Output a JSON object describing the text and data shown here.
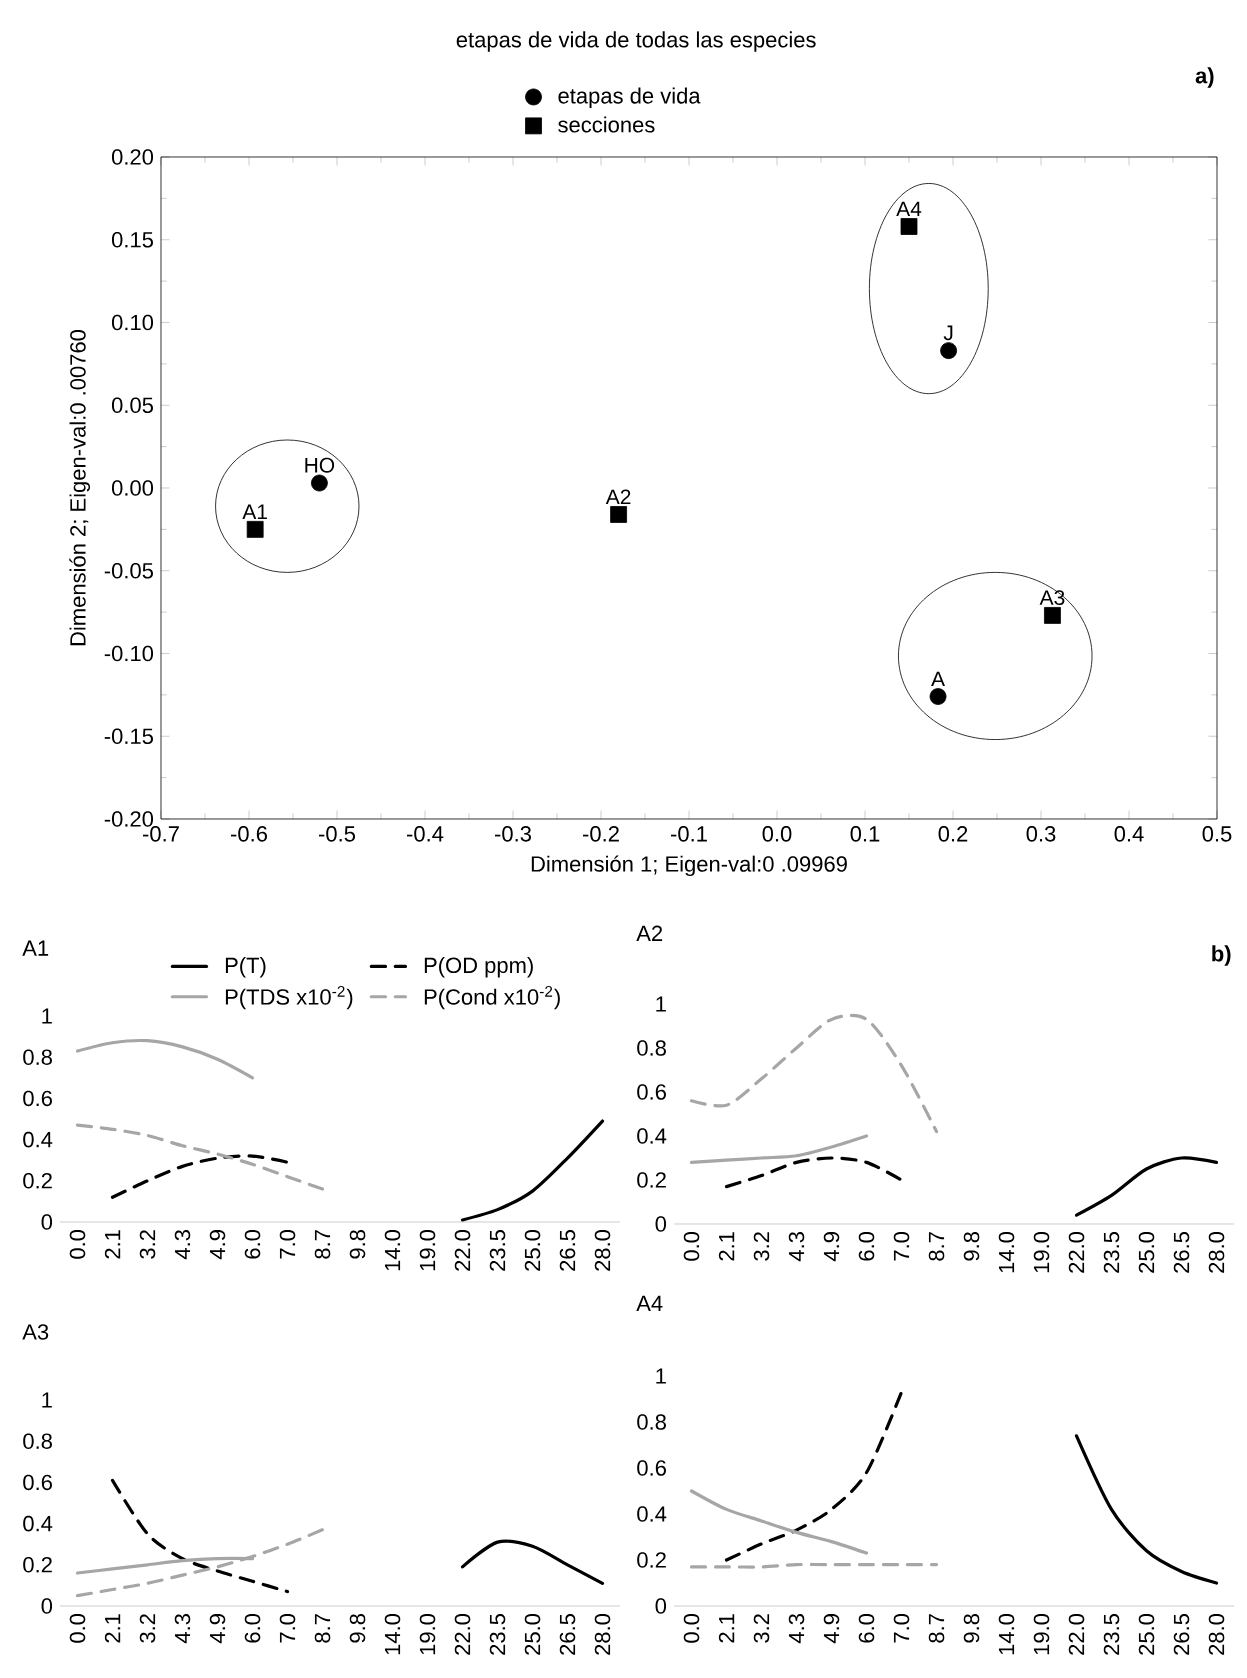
{
  "chart_data": [
    {
      "type": "scatter",
      "title": "etapas de vida de todas las especies",
      "xlabel": "Dimensión 1; Eigen-val:0 .09969",
      "ylabel": "Dimensión 2; Eigen-val:0 .00760",
      "xlim": [
        -0.7,
        0.5
      ],
      "xticks": [
        -0.7,
        -0.6,
        -0.5,
        -0.4,
        -0.3,
        -0.2,
        -0.1,
        {
          "value": 0,
          "label": "0.0"
        },
        0.1,
        0.2,
        0.3,
        0.4,
        0.5
      ],
      "ylim": [
        -0.2,
        0.2
      ],
      "yticks": [
        {
          "value": -0.2,
          "label": "-0.20"
        },
        {
          "value": -0.15,
          "label": "-0.15"
        },
        {
          "value": -0.1,
          "label": "-0.10"
        },
        {
          "value": -0.05,
          "label": "-0.05"
        },
        {
          "value": 0,
          "label": "0.00"
        },
        {
          "value": 0.05,
          "label": "0.05"
        },
        {
          "value": 0.1,
          "label": "0.10"
        },
        {
          "value": 0.15,
          "label": "0.15"
        },
        {
          "value": 0.2,
          "label": "0.20"
        }
      ],
      "legend": "top",
      "series": [
        {
          "name": "etapas de vida",
          "color": "#000000",
          "marker": "circle",
          "x": [
            -0.52,
            0.195,
            0.183
          ],
          "values": [
            0.003,
            0.083,
            -0.126
          ]
        },
        {
          "name": "secciones",
          "color": "#000000",
          "marker": "square",
          "x": [
            -0.593,
            -0.18,
            0.313,
            0.15
          ],
          "values": [
            -0.025,
            -0.016,
            -0.077,
            0.158
          ]
        }
      ],
      "annotations": [
        "a)",
        {
          "text": "HO",
          "x": -0.52,
          "y": 0.003
        },
        {
          "text": "J",
          "x": 0.195,
          "y": 0.083
        },
        {
          "text": "A",
          "x": 0.183,
          "y": -0.126
        },
        {
          "text": "A1",
          "x": -0.593,
          "y": -0.025
        },
        {
          "text": "A2",
          "x": -0.18,
          "y": -0.016
        },
        {
          "text": "A3",
          "x": 0.313,
          "y": -0.077
        },
        {
          "text": "A4",
          "x": 0.15,
          "y": 0.158
        }
      ]
    },
    {
      "type": "line",
      "title": "A1",
      "categories": [
        "0.0",
        "2.1",
        "3.2",
        "4.3",
        "4.9",
        "6.0",
        "7.0",
        "8.7",
        "9.8",
        "14.0",
        "19.0",
        "22.0",
        "23.5",
        "25.0",
        "26.5",
        "28.0"
      ],
      "ylim": [
        0,
        1
      ],
      "yticks": [
        0,
        0.2,
        0.4,
        0.6,
        0.8,
        1
      ],
      "legend": "top",
      "series": [
        {
          "name": "P(T)",
          "color": "#000000",
          "line_style": "solid",
          "values": [
            null,
            null,
            null,
            null,
            null,
            null,
            null,
            null,
            null,
            null,
            null,
            0.01,
            0.06,
            0.15,
            0.31,
            0.49
          ]
        },
        {
          "name": "P(OD ppm)",
          "color": "#000000",
          "line_style": "dashed",
          "values": [
            null,
            0.12,
            0.2,
            0.27,
            0.31,
            0.32,
            0.29,
            null,
            null,
            null,
            null,
            null,
            null,
            null,
            null,
            null
          ]
        },
        {
          "name": "P(TDS x10$^{-2}$)",
          "color": "#a6a6a6",
          "line_style": "solid",
          "values": [
            0.83,
            0.87,
            0.88,
            0.85,
            0.79,
            0.7,
            null,
            null,
            null,
            null,
            null,
            null,
            null,
            null,
            null,
            null
          ]
        },
        {
          "name": "P(Cond x10$^{-2}$)",
          "color": "#a6a6a6",
          "line_style": "dashed",
          "values": [
            0.47,
            0.45,
            0.42,
            0.37,
            0.33,
            0.28,
            0.22,
            0.16,
            null,
            null,
            null,
            null,
            null,
            null,
            null,
            null
          ]
        }
      ]
    },
    {
      "type": "line",
      "title": "A2",
      "categories": [
        "0.0",
        "2.1",
        "3.2",
        "4.3",
        "4.9",
        "6.0",
        "7.0",
        "8.7",
        "9.8",
        "14.0",
        "19.0",
        "22.0",
        "23.5",
        "25.0",
        "26.5",
        "28.0"
      ],
      "ylim": [
        0,
        1
      ],
      "yticks": [
        0,
        0.2,
        0.4,
        0.6,
        0.8,
        1
      ],
      "annotations": [
        "b)"
      ],
      "series": [
        {
          "color": "#000000",
          "line_style": "solid",
          "values": [
            null,
            null,
            null,
            null,
            null,
            null,
            null,
            null,
            null,
            null,
            null,
            0.04,
            0.13,
            0.25,
            0.3,
            0.28
          ]
        },
        {
          "color": "#000000",
          "line_style": "dashed",
          "values": [
            null,
            0.17,
            0.22,
            0.28,
            0.3,
            0.28,
            0.2,
            null,
            null,
            null,
            null,
            null,
            null,
            null,
            null,
            null
          ]
        },
        {
          "color": "#a6a6a6",
          "line_style": "solid",
          "values": [
            0.28,
            0.29,
            0.3,
            0.31,
            0.35,
            0.4,
            null,
            null,
            null,
            null,
            null,
            null,
            null,
            null,
            null,
            null
          ]
        },
        {
          "color": "#a6a6a6",
          "line_style": "dashed",
          "values": [
            0.56,
            0.54,
            0.66,
            0.8,
            0.93,
            0.93,
            0.72,
            0.42,
            null,
            null,
            null,
            null,
            null,
            null,
            null,
            null
          ]
        }
      ]
    },
    {
      "type": "line",
      "title": "A3",
      "categories": [
        "0.0",
        "2.1",
        "3.2",
        "4.3",
        "4.9",
        "6.0",
        "7.0",
        "8.7",
        "9.8",
        "14.0",
        "19.0",
        "22.0",
        "23.5",
        "25.0",
        "26.5",
        "28.0"
      ],
      "ylim": [
        0,
        1
      ],
      "yticks": [
        0,
        0.2,
        0.4,
        0.6,
        0.8,
        1
      ],
      "series": [
        {
          "color": "#000000",
          "line_style": "solid",
          "values": [
            null,
            null,
            null,
            null,
            null,
            null,
            null,
            null,
            null,
            null,
            null,
            0.19,
            0.31,
            0.29,
            0.2,
            0.11
          ]
        },
        {
          "color": "#000000",
          "line_style": "dashed",
          "values": [
            null,
            0.61,
            0.35,
            0.23,
            0.17,
            0.12,
            0.07,
            null,
            null,
            null,
            null,
            null,
            null,
            null,
            null,
            null
          ]
        },
        {
          "color": "#a6a6a6",
          "line_style": "solid",
          "values": [
            0.16,
            0.18,
            0.2,
            0.22,
            0.23,
            0.23,
            null,
            null,
            null,
            null,
            null,
            null,
            null,
            null,
            null,
            null
          ]
        },
        {
          "color": "#a6a6a6",
          "line_style": "dashed",
          "values": [
            0.05,
            0.08,
            0.11,
            0.15,
            0.19,
            0.24,
            0.3,
            0.37,
            null,
            null,
            null,
            null,
            null,
            null,
            null,
            null
          ]
        }
      ]
    },
    {
      "type": "line",
      "title": "A4",
      "categories": [
        "0.0",
        "2.1",
        "3.2",
        "4.3",
        "4.9",
        "6.0",
        "7.0",
        "8.7",
        "9.8",
        "14.0",
        "19.0",
        "22.0",
        "23.5",
        "25.0",
        "26.5",
        "28.0"
      ],
      "ylim": [
        0,
        1
      ],
      "yticks": [
        0,
        0.2,
        0.4,
        0.6,
        0.8,
        1
      ],
      "series": [
        {
          "color": "#000000",
          "line_style": "solid",
          "values": [
            null,
            null,
            null,
            null,
            null,
            null,
            null,
            null,
            null,
            null,
            null,
            0.74,
            0.42,
            0.24,
            0.15,
            0.1
          ]
        },
        {
          "color": "#000000",
          "line_style": "dashed",
          "values": [
            null,
            0.2,
            0.27,
            0.33,
            0.42,
            0.58,
            0.93,
            null,
            null,
            null,
            null,
            null,
            null,
            null,
            null,
            null
          ]
        },
        {
          "color": "#a6a6a6",
          "line_style": "solid",
          "values": [
            0.5,
            0.42,
            0.37,
            0.32,
            0.28,
            0.23,
            null,
            null,
            null,
            null,
            null,
            null,
            null,
            null,
            null,
            null
          ]
        },
        {
          "color": "#a6a6a6",
          "line_style": "dashed",
          "values": [
            0.17,
            0.17,
            0.17,
            0.18,
            0.18,
            0.18,
            0.18,
            0.18,
            null,
            null,
            null,
            null,
            null,
            null,
            null,
            null
          ]
        }
      ]
    }
  ]
}
